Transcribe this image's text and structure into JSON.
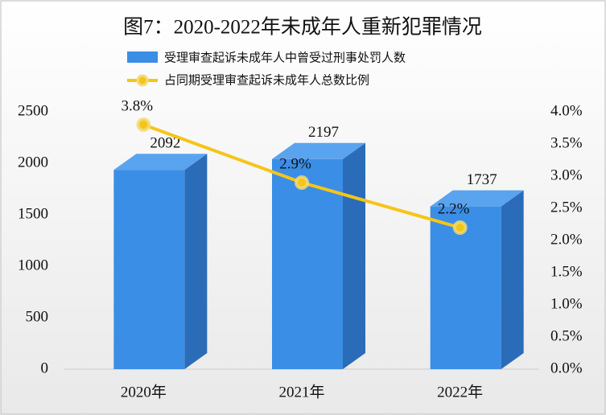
{
  "chart_data": {
    "type": "bar_line",
    "title": "图7：2020-2022年未成年人重新犯罪情况",
    "categories": [
      "2020年",
      "2021年",
      "2022年"
    ],
    "series": [
      {
        "name": "受理审查起诉未成年人中曾受过刑事处罚人数",
        "color": "#3a8ee6",
        "type": "bar",
        "values": [
          2092,
          2197,
          1737
        ]
      },
      {
        "name": "占同期受理审查起诉未成年人总数比例",
        "color": "#f5c518",
        "type": "line",
        "axis": "y2",
        "values": [
          3.8,
          2.9,
          2.2
        ],
        "value_labels": [
          "3.8%",
          "2.9%",
          "2.2%"
        ]
      }
    ],
    "ylim": [
      0,
      2500
    ],
    "yticks": [
      0,
      500,
      1000,
      1500,
      2000,
      2500
    ],
    "y2lim": [
      0,
      4
    ],
    "y2ticks": [
      {
        "value": 0,
        "label": "0.0%"
      },
      {
        "value": 0.5,
        "label": "0.5%"
      },
      {
        "value": 1,
        "label": "1.0%"
      },
      {
        "value": 1.5,
        "label": "1.5%"
      },
      {
        "value": 2,
        "label": "2.0%"
      },
      {
        "value": 2.5,
        "label": "2.5%"
      },
      {
        "value": 3,
        "label": "3.0%"
      },
      {
        "value": 3.5,
        "label": "3.5%"
      },
      {
        "value": 4,
        "label": "4.0%"
      }
    ]
  }
}
